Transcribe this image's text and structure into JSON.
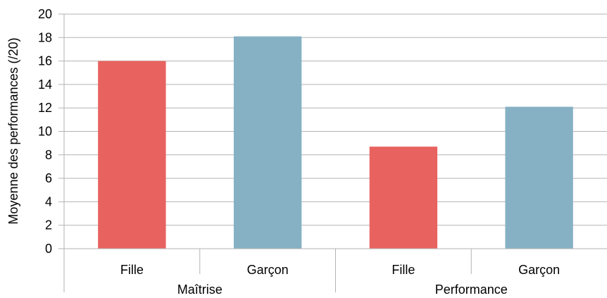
{
  "chart_data": {
    "type": "bar",
    "title": "",
    "ylabel": "Moyenne des performances (/20)",
    "xlabel": "",
    "ylim": [
      0,
      20
    ],
    "yticks": [
      0,
      2,
      4,
      6,
      8,
      10,
      12,
      14,
      16,
      18,
      20
    ],
    "grid": true,
    "groups": [
      {
        "label": "Maîtrise",
        "bars": [
          {
            "category": "Fille",
            "value": 16.0
          },
          {
            "category": "Garçon",
            "value": 18.1
          }
        ]
      },
      {
        "label": "Performance",
        "bars": [
          {
            "category": "Fille",
            "value": 8.7
          },
          {
            "category": "Garçon",
            "value": 12.1
          }
        ]
      }
    ],
    "colors": {
      "Fille": "#e8635f",
      "Garçon": "#86b1c4"
    }
  }
}
